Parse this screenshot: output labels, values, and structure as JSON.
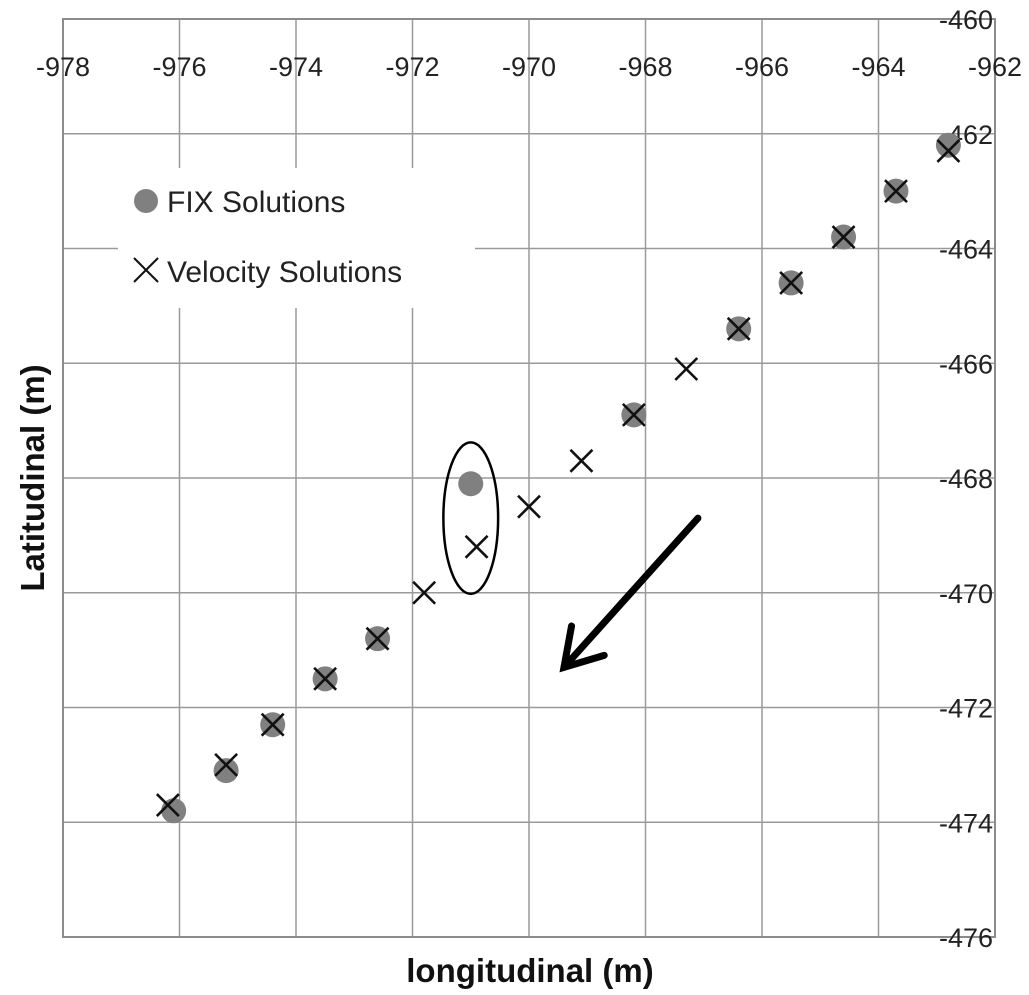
{
  "chart_data": {
    "type": "scatter",
    "xlabel": "longitudinal (m)",
    "ylabel": "Latitudinal (m)",
    "xlim": [
      -978,
      -962
    ],
    "ylim": [
      -476,
      -460
    ],
    "x_ticks": [
      -978,
      -976,
      -974,
      -972,
      -970,
      -968,
      -966,
      -964,
      -962
    ],
    "y_ticks": [
      -460,
      -462,
      -464,
      -466,
      -468,
      -470,
      -472,
      -474,
      -476
    ],
    "x_axis_position": "top",
    "y_axis_position": "right",
    "grid": true,
    "legend_position": "top-left",
    "series": [
      {
        "name": "FIX Solutions",
        "marker": "circle",
        "color": "#808080",
        "points": [
          {
            "x": -976.1,
            "y": -473.8
          },
          {
            "x": -975.2,
            "y": -473.1
          },
          {
            "x": -974.4,
            "y": -472.3
          },
          {
            "x": -973.5,
            "y": -471.5
          },
          {
            "x": -972.6,
            "y": -470.8
          },
          {
            "x": -971.0,
            "y": -468.1
          },
          {
            "x": -968.2,
            "y": -466.9
          },
          {
            "x": -966.4,
            "y": -465.4
          },
          {
            "x": -965.5,
            "y": -464.6
          },
          {
            "x": -964.6,
            "y": -463.8
          },
          {
            "x": -963.7,
            "y": -463.0
          },
          {
            "x": -962.8,
            "y": -462.2
          }
        ]
      },
      {
        "name": "Velocity Solutions",
        "marker": "x",
        "color": "#111111",
        "points": [
          {
            "x": -976.2,
            "y": -473.7
          },
          {
            "x": -975.2,
            "y": -473.0
          },
          {
            "x": -974.4,
            "y": -472.3
          },
          {
            "x": -973.5,
            "y": -471.5
          },
          {
            "x": -972.6,
            "y": -470.8
          },
          {
            "x": -971.8,
            "y": -470.0
          },
          {
            "x": -970.9,
            "y": -469.2
          },
          {
            "x": -970.0,
            "y": -468.5
          },
          {
            "x": -969.1,
            "y": -467.7
          },
          {
            "x": -968.2,
            "y": -466.9
          },
          {
            "x": -967.3,
            "y": -466.1
          },
          {
            "x": -966.4,
            "y": -465.4
          },
          {
            "x": -965.5,
            "y": -464.6
          },
          {
            "x": -964.6,
            "y": -463.8
          },
          {
            "x": -963.7,
            "y": -463.0
          },
          {
            "x": -962.8,
            "y": -462.3
          }
        ]
      }
    ],
    "annotations": [
      {
        "type": "ellipse",
        "center": {
          "x": -971.0,
          "y": -468.7
        },
        "x_radius": 0.47,
        "y_radius": 1.32,
        "color": "#000000"
      },
      {
        "type": "arrow",
        "from": {
          "x": -967.1,
          "y": -468.7
        },
        "to": {
          "x": -969.4,
          "y": -471.3
        },
        "color": "#000000"
      }
    ]
  }
}
